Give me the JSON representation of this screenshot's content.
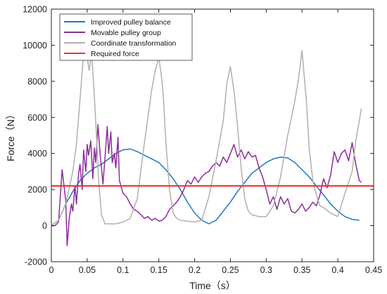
{
  "chart_data": {
    "type": "line",
    "xlabel": "Time（s）",
    "ylabel": "Force（N）",
    "xlim": [
      0,
      0.45
    ],
    "ylim": [
      -2000,
      12000
    ],
    "xticks": [
      0,
      0.05,
      0.1,
      0.15,
      0.2,
      0.25,
      0.3,
      0.35,
      0.4,
      0.45
    ],
    "xtick_labels": [
      "0",
      "0.05",
      "0.1",
      "0.15",
      "0.2",
      "0.25",
      "0.3",
      "0.35",
      "0.4",
      "0.45"
    ],
    "yticks": [
      -2000,
      0,
      2000,
      4000,
      6000,
      8000,
      10000,
      12000
    ],
    "ytick_labels": [
      "-2000",
      "0",
      "2000",
      "4000",
      "6000",
      "8000",
      "10000",
      "12000"
    ],
    "grid": false,
    "legend_position": "top-left",
    "series": [
      {
        "name": "Improved pulley balance",
        "color": "#1f77c4",
        "x": [
          0,
          0.01,
          0.02,
          0.03,
          0.04,
          0.05,
          0.06,
          0.07,
          0.08,
          0.09,
          0.1,
          0.11,
          0.12,
          0.13,
          0.14,
          0.15,
          0.16,
          0.17,
          0.18,
          0.19,
          0.2,
          0.21,
          0.22,
          0.23,
          0.24,
          0.25,
          0.26,
          0.27,
          0.28,
          0.29,
          0.3,
          0.31,
          0.32,
          0.33,
          0.34,
          0.35,
          0.36,
          0.37,
          0.38,
          0.39,
          0.4,
          0.41,
          0.42,
          0.43
        ],
        "y": [
          0,
          300,
          1200,
          1900,
          2500,
          2900,
          3200,
          3400,
          3700,
          4000,
          4200,
          4250,
          4100,
          3900,
          3700,
          3500,
          3100,
          2600,
          2000,
          1300,
          700,
          300,
          100,
          300,
          800,
          1300,
          1900,
          2400,
          2900,
          3200,
          3500,
          3700,
          3800,
          3750,
          3500,
          3100,
          2700,
          2200,
          1700,
          1200,
          800,
          500,
          350,
          300
        ]
      },
      {
        "name": "Movable pulley group",
        "color": "#8e2b9c",
        "x": [
          0,
          0.005,
          0.01,
          0.015,
          0.02,
          0.022,
          0.025,
          0.028,
          0.03,
          0.033,
          0.035,
          0.038,
          0.04,
          0.043,
          0.045,
          0.048,
          0.05,
          0.052,
          0.055,
          0.058,
          0.06,
          0.062,
          0.065,
          0.068,
          0.07,
          0.072,
          0.075,
          0.078,
          0.08,
          0.083,
          0.085,
          0.088,
          0.09,
          0.093,
          0.095,
          0.1,
          0.105,
          0.11,
          0.115,
          0.12,
          0.125,
          0.13,
          0.135,
          0.14,
          0.145,
          0.15,
          0.155,
          0.16,
          0.165,
          0.17,
          0.175,
          0.18,
          0.185,
          0.19,
          0.195,
          0.2,
          0.205,
          0.21,
          0.215,
          0.22,
          0.225,
          0.23,
          0.235,
          0.24,
          0.245,
          0.25,
          0.255,
          0.26,
          0.265,
          0.27,
          0.275,
          0.28,
          0.285,
          0.29,
          0.295,
          0.3,
          0.305,
          0.31,
          0.315,
          0.32,
          0.325,
          0.33,
          0.335,
          0.34,
          0.345,
          0.35,
          0.355,
          0.36,
          0.365,
          0.37,
          0.375,
          0.38,
          0.385,
          0.39,
          0.395,
          0.4,
          0.405,
          0.41,
          0.415,
          0.42,
          0.425,
          0.43,
          0.433
        ],
        "y": [
          0,
          0,
          200,
          3100,
          1400,
          -1100,
          400,
          1200,
          800,
          2200,
          1200,
          2900,
          3400,
          2000,
          4200,
          3000,
          4500,
          3900,
          4700,
          2600,
          4300,
          3500,
          5600,
          4000,
          3200,
          2300,
          3800,
          5500,
          4000,
          5200,
          3500,
          4000,
          3200,
          4900,
          2500,
          1800,
          1600,
          1200,
          900,
          800,
          600,
          400,
          500,
          300,
          400,
          250,
          300,
          500,
          900,
          1100,
          1300,
          1600,
          2000,
          2500,
          2300,
          2700,
          2400,
          2700,
          2900,
          3000,
          3300,
          3500,
          3300,
          3800,
          3500,
          4000,
          4500,
          3800,
          4200,
          3700,
          4100,
          3800,
          3900,
          3200,
          2700,
          2000,
          1200,
          1600,
          900,
          1600,
          1200,
          1500,
          800,
          700,
          900,
          1200,
          800,
          1000,
          1300,
          1100,
          1700,
          2600,
          2100,
          2800,
          4100,
          3500,
          4000,
          4200,
          3600,
          4600,
          3400,
          2500,
          2400
        ]
      },
      {
        "name": "Coordinate transformation",
        "color": "#b5aeae",
        "x": [
          0,
          0.01,
          0.02,
          0.03,
          0.035,
          0.04,
          0.045,
          0.05,
          0.053,
          0.056,
          0.06,
          0.063,
          0.066,
          0.07,
          0.075,
          0.08,
          0.09,
          0.1,
          0.11,
          0.12,
          0.13,
          0.14,
          0.145,
          0.15,
          0.153,
          0.156,
          0.16,
          0.165,
          0.17,
          0.175,
          0.18,
          0.19,
          0.2,
          0.21,
          0.22,
          0.23,
          0.24,
          0.245,
          0.25,
          0.255,
          0.26,
          0.265,
          0.27,
          0.275,
          0.28,
          0.29,
          0.3,
          0.31,
          0.32,
          0.33,
          0.34,
          0.345,
          0.35,
          0.353,
          0.356,
          0.36,
          0.365,
          0.37,
          0.375,
          0.38,
          0.39,
          0.4,
          0.41,
          0.42,
          0.425,
          0.43,
          0.433
        ],
        "y": [
          0,
          300,
          1200,
          3000,
          4500,
          7000,
          9500,
          9300,
          8600,
          9700,
          7200,
          5000,
          2500,
          600,
          100,
          100,
          100,
          200,
          400,
          1500,
          4600,
          7500,
          8600,
          9300,
          8500,
          7400,
          4600,
          2000,
          700,
          400,
          300,
          250,
          200,
          300,
          1600,
          3600,
          5800,
          7900,
          8800,
          7500,
          5500,
          3200,
          1500,
          800,
          600,
          500,
          500,
          1100,
          2700,
          5000,
          6900,
          8100,
          9700,
          8300,
          7000,
          4300,
          2500,
          1700,
          1100,
          1000,
          700,
          500,
          1800,
          3000,
          4700,
          5800,
          6500
        ]
      },
      {
        "name": "Required force",
        "color": "#e8372f",
        "x": [
          0,
          0.45
        ],
        "y": [
          2200,
          2200
        ]
      }
    ]
  }
}
